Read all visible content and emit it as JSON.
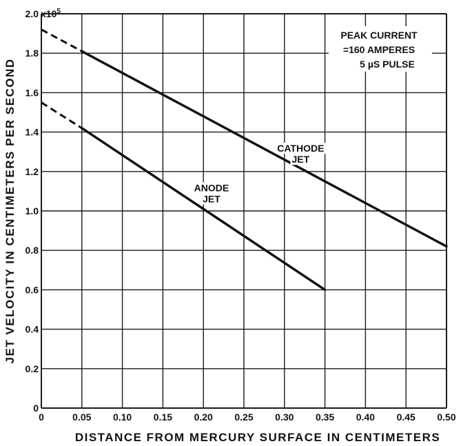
{
  "chart_data": {
    "type": "line",
    "title": "",
    "xlabel": "DISTANCE FROM MERCURY SURFACE IN CENTIMETERS",
    "ylabel": "JET VELOCITY IN CENTIMETERS PER SECOND",
    "y_multiplier_label": "x10",
    "y_multiplier_exponent": "5",
    "xlim": [
      0,
      0.5
    ],
    "ylim": [
      0,
      2.0
    ],
    "grid": true,
    "x_ticks": [
      "0",
      "0.05",
      "0.10",
      "0.15",
      "0.20",
      "0.25",
      "0.30",
      "0.35",
      "0.40",
      "0.45",
      "0.50"
    ],
    "y_ticks": [
      "0",
      "0.2",
      "0.4",
      "0.6",
      "0.8",
      "1.0",
      "1.2",
      "1.4",
      "1.6",
      "1.8",
      "2.0"
    ],
    "series": [
      {
        "name": "CATHODE JET",
        "label_lines": [
          "CATHODE",
          "JET"
        ],
        "label_pos": [
          0.32,
          1.3
        ],
        "dashed_segment": {
          "x": [
            0,
            0.05
          ],
          "y": [
            1.92,
            1.81
          ]
        },
        "solid_segment": {
          "x": [
            0.05,
            0.5
          ],
          "y": [
            1.81,
            0.82
          ]
        }
      },
      {
        "name": "ANODE JET",
        "label_lines": [
          "ANODE",
          "JET"
        ],
        "label_pos": [
          0.21,
          1.1
        ],
        "dashed_segment": {
          "x": [
            0,
            0.05
          ],
          "y": [
            1.55,
            1.42
          ]
        },
        "solid_segment": {
          "x": [
            0.05,
            0.35
          ],
          "y": [
            1.42,
            0.6
          ]
        }
      }
    ],
    "annotation": {
      "lines": [
        "PEAK CURRENT",
        "=160 AMPERES",
        "5 µS PULSE"
      ],
      "position": "top-right"
    },
    "colors": {
      "line": "#111111",
      "grid": "#1a1a1a",
      "background": "#ffffff"
    }
  }
}
